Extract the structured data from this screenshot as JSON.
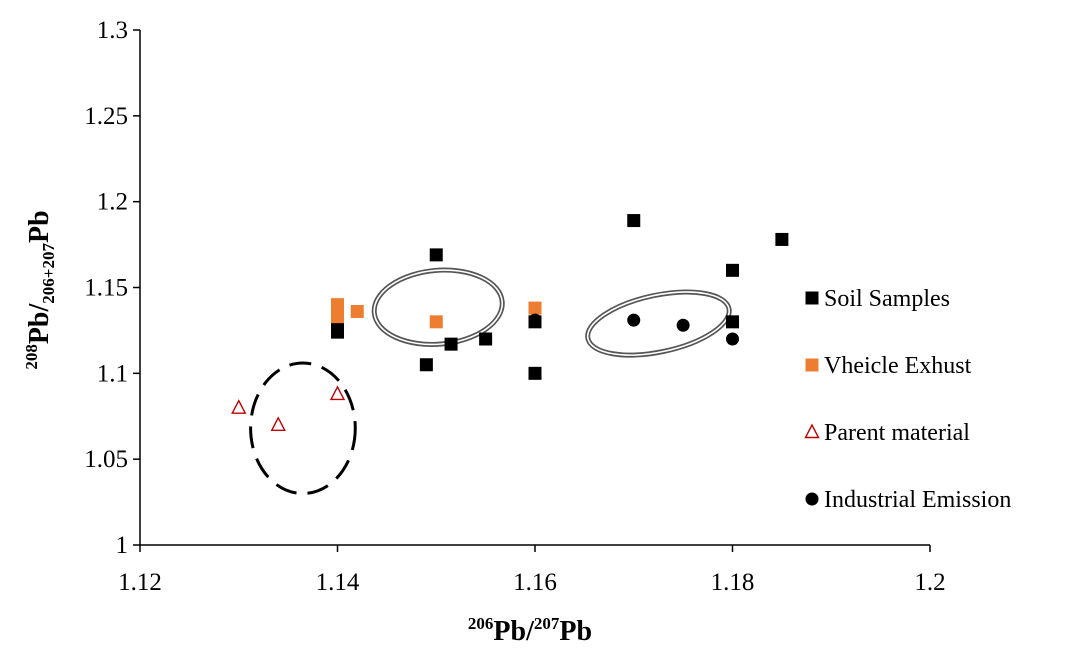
{
  "chart_data": {
    "type": "scatter",
    "xlabel": {
      "sup1": "206",
      "base1": "Pb/",
      "sup2": "207",
      "base2": "Pb"
    },
    "ylabel": {
      "sup1": "208",
      "base1": "Pb/",
      "sub": "206+207",
      "base2": "Pb"
    },
    "xlim": [
      1.12,
      1.2
    ],
    "ylim": [
      1.0,
      1.3
    ],
    "xticks": [
      "1.12",
      "1.14",
      "1.16",
      "1.18",
      "1.2"
    ],
    "yticks": [
      "1",
      "1.05",
      "1.1",
      "1.15",
      "1.2",
      "1.25",
      "1.3"
    ],
    "grid": false,
    "legend_position": "right",
    "series": [
      {
        "name": "Soil Samples",
        "marker": "square",
        "color": "#000000",
        "points": [
          [
            1.14,
            1.124
          ],
          [
            1.14,
            1.13
          ],
          [
            1.149,
            1.105
          ],
          [
            1.15,
            1.169
          ],
          [
            1.1515,
            1.117
          ],
          [
            1.155,
            1.12
          ],
          [
            1.16,
            1.1
          ],
          [
            1.16,
            1.13
          ],
          [
            1.17,
            1.189
          ],
          [
            1.18,
            1.16
          ],
          [
            1.18,
            1.13
          ],
          [
            1.185,
            1.178
          ]
        ]
      },
      {
        "name": "Vheicle Exhust",
        "marker": "square",
        "color": "#ED7D31",
        "points": [
          [
            1.14,
            1.14
          ],
          [
            1.14,
            1.133
          ],
          [
            1.142,
            1.136
          ],
          [
            1.15,
            1.13
          ],
          [
            1.16,
            1.138
          ]
        ]
      },
      {
        "name": "Parent material",
        "marker": "triangle-open",
        "color": "#C00000",
        "points": [
          [
            1.13,
            1.08
          ],
          [
            1.134,
            1.07
          ],
          [
            1.14,
            1.088
          ]
        ]
      },
      {
        "name": "Industrial Emission",
        "marker": "circle",
        "color": "#000000",
        "points": [
          [
            1.16,
            1.131
          ],
          [
            1.17,
            1.131
          ],
          [
            1.175,
            1.128
          ],
          [
            1.18,
            1.12
          ]
        ]
      }
    ],
    "annotations": [
      {
        "shape": "ellipse",
        "style": "dashed",
        "cx": 1.1365,
        "cy": 1.068,
        "rx": 0.0053,
        "ry": 0.038,
        "rotate": 0
      },
      {
        "shape": "ellipse",
        "style": "double",
        "cx": 1.1502,
        "cy": 1.1385,
        "rx": 0.0065,
        "ry": 0.0215,
        "rotate": 5
      },
      {
        "shape": "ellipse",
        "style": "double",
        "cx": 1.1725,
        "cy": 1.129,
        "rx": 0.0073,
        "ry": 0.0165,
        "rotate": 12
      }
    ]
  }
}
